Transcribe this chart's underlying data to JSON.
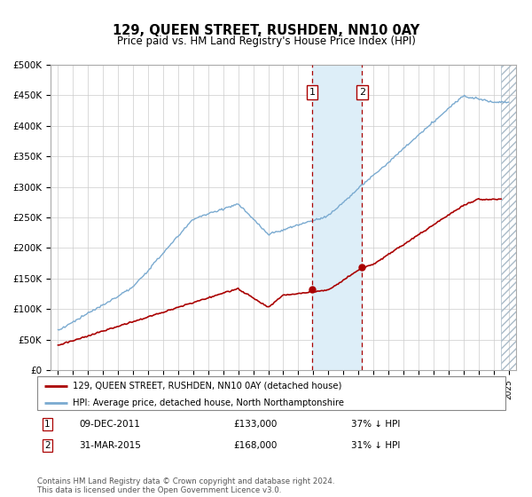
{
  "title": "129, QUEEN STREET, RUSHDEN, NN10 0AY",
  "subtitle": "Price paid vs. HM Land Registry's House Price Index (HPI)",
  "footer": "Contains HM Land Registry data © Crown copyright and database right 2024.\nThis data is licensed under the Open Government Licence v3.0.",
  "legend_line1": "129, QUEEN STREET, RUSHDEN, NN10 0AY (detached house)",
  "legend_line2": "HPI: Average price, detached house, North Northamptonshire",
  "sale1_date": "09-DEC-2011",
  "sale1_price": "£133,000",
  "sale1_hpi": "37% ↓ HPI",
  "sale1_year": 2011.92,
  "sale1_value": 133000,
  "sale2_date": "31-MAR-2015",
  "sale2_price": "£168,000",
  "sale2_hpi": "31% ↓ HPI",
  "sale2_year": 2015.25,
  "sale2_value": 168000,
  "red_color": "#aa0000",
  "blue_color": "#7aaad0",
  "shade_color": "#ddeef8",
  "ylim": [
    0,
    500000
  ],
  "yticks": [
    0,
    50000,
    100000,
    150000,
    200000,
    250000,
    300000,
    350000,
    400000,
    450000,
    500000
  ],
  "xlim_start": 1994.5,
  "xlim_end": 2025.5
}
